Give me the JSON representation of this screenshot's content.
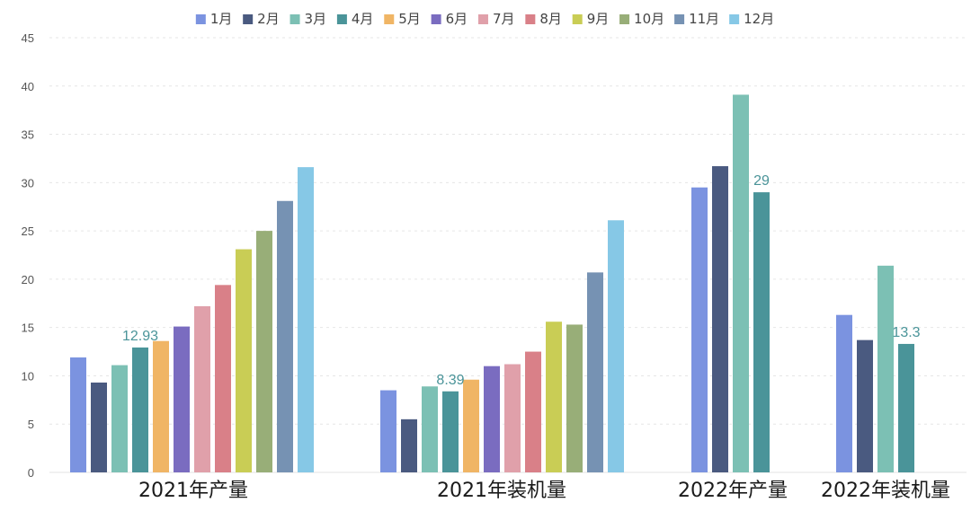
{
  "chart_data": {
    "type": "bar",
    "categories": [
      "2021年产量",
      "2021年装机量",
      "2022年产量",
      "2022年装机量"
    ],
    "series": [
      {
        "name": "1月",
        "color": "#7b93e0",
        "values": [
          11.9,
          8.5,
          29.5,
          16.3
        ]
      },
      {
        "name": "2月",
        "color": "#4a5a80",
        "values": [
          9.3,
          5.5,
          31.7,
          13.7
        ]
      },
      {
        "name": "3月",
        "color": "#7cc0b4",
        "values": [
          11.1,
          8.9,
          39.1,
          21.4
        ]
      },
      {
        "name": "4月",
        "color": "#4a9499",
        "values": [
          12.93,
          8.39,
          29,
          13.3
        ]
      },
      {
        "name": "5月",
        "color": "#f0b565",
        "values": [
          13.6,
          9.6,
          null,
          null
        ]
      },
      {
        "name": "6月",
        "color": "#7a6cc0",
        "values": [
          15.1,
          11.0,
          null,
          null
        ]
      },
      {
        "name": "7月",
        "color": "#e0a0aa",
        "values": [
          17.2,
          11.2,
          null,
          null
        ]
      },
      {
        "name": "8月",
        "color": "#d98088",
        "values": [
          19.4,
          12.5,
          null,
          null
        ]
      },
      {
        "name": "9月",
        "color": "#c9cd55",
        "values": [
          23.1,
          15.6,
          null,
          null
        ]
      },
      {
        "name": "10月",
        "color": "#98ae78",
        "values": [
          25.0,
          15.3,
          null,
          null
        ]
      },
      {
        "name": "11月",
        "color": "#7692b3",
        "values": [
          28.1,
          20.7,
          null,
          null
        ]
      },
      {
        "name": "12月",
        "color": "#86c8e6",
        "values": [
          31.6,
          26.1,
          null,
          null
        ]
      }
    ],
    "data_labels": [
      {
        "category_index": 0,
        "series_index": 3,
        "text": "12.93"
      },
      {
        "category_index": 1,
        "series_index": 3,
        "text": "8.39"
      },
      {
        "category_index": 2,
        "series_index": 3,
        "text": "29"
      },
      {
        "category_index": 3,
        "series_index": 3,
        "text": "13.3"
      }
    ],
    "data_label_color": "#4a9499",
    "yticks": [
      "0",
      "5",
      "10",
      "15",
      "20",
      "25",
      "30",
      "35",
      "40",
      "45"
    ],
    "ylim": [
      0,
      45
    ],
    "legend_position": "top-center",
    "grid": true
  }
}
